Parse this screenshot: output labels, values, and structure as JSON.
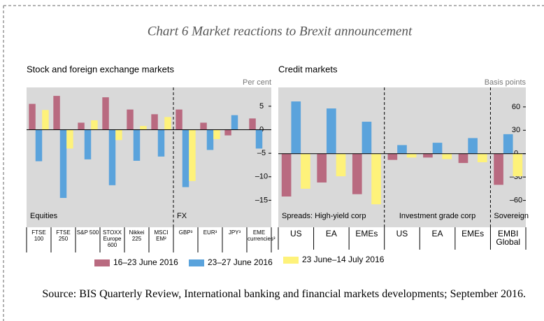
{
  "title": "Chart 6 Market reactions to Brexit announcement",
  "source": "Source: BIS Quarterly Review, International banking and financial markets developments; September 2016.",
  "chart_data": [
    {
      "type": "bar",
      "title": "Stock and foreign exchange markets",
      "unit": "Per cent",
      "categories": [
        "FTSE 100",
        "FTSE 250",
        "S&P 500",
        "STOXX Europe 600",
        "Nikkei 225",
        "MSCI EM²",
        "GBP³",
        "EUR³",
        "JPY³",
        "EME currencies³"
      ],
      "groups": [
        "Equities",
        "FX"
      ],
      "series": [
        {
          "name": "16–23 June 2016",
          "color": "#b96a80",
          "values": [
            5.5,
            7.2,
            1.5,
            6.9,
            4.3,
            3.3,
            4.3,
            1.5,
            -1.2,
            2.4
          ]
        },
        {
          "name": "23–27 June 2016",
          "color": "#5aa3dc",
          "values": [
            -6.7,
            -14.5,
            -6.3,
            -11.8,
            -6.6,
            -5.7,
            -12.2,
            -4.3,
            3.1,
            -4
          ]
        },
        {
          "name": "23 June–14 July 2016",
          "color": "#fef27a",
          "values": [
            4.2,
            -4,
            2,
            -2.2,
            0.8,
            2.7,
            -10.9,
            -2,
            null,
            null
          ]
        }
      ],
      "ylim": [
        -20,
        9
      ],
      "yticks": [
        5,
        0,
        {
          "value": -5,
          "label": "–5"
        },
        {
          "value": -10,
          "label": "–10"
        },
        {
          "value": -15,
          "label": "–15"
        }
      ]
    },
    {
      "type": "bar",
      "title": "Credit markets",
      "unit": "Basis points",
      "categories": [
        "US",
        "EA",
        "EMEs",
        "US",
        "EA",
        "EMEs",
        "EMBI Global"
      ],
      "groups": [
        "Spreads:  High-yield corp",
        "Investment grade corp",
        "Sovereign"
      ],
      "series": [
        {
          "name": "16–23 June 2016",
          "color": "#b96a80",
          "values": [
            -55,
            -37,
            -52,
            -8,
            -5,
            -12,
            -40
          ]
        },
        {
          "name": "23–27 June 2016",
          "color": "#5aa3dc",
          "values": [
            67,
            58,
            41,
            11,
            14,
            20,
            25
          ]
        },
        {
          "name": "23 June–14 July 2016",
          "color": "#fef27a",
          "values": [
            -45,
            -29,
            -65,
            -5,
            -7,
            -11,
            -29
          ]
        }
      ],
      "ylim": [
        -90,
        85
      ],
      "yticks": [
        60,
        30,
        0,
        {
          "value": -30,
          "label": "–30"
        },
        {
          "value": -60,
          "label": "–60"
        }
      ]
    }
  ]
}
